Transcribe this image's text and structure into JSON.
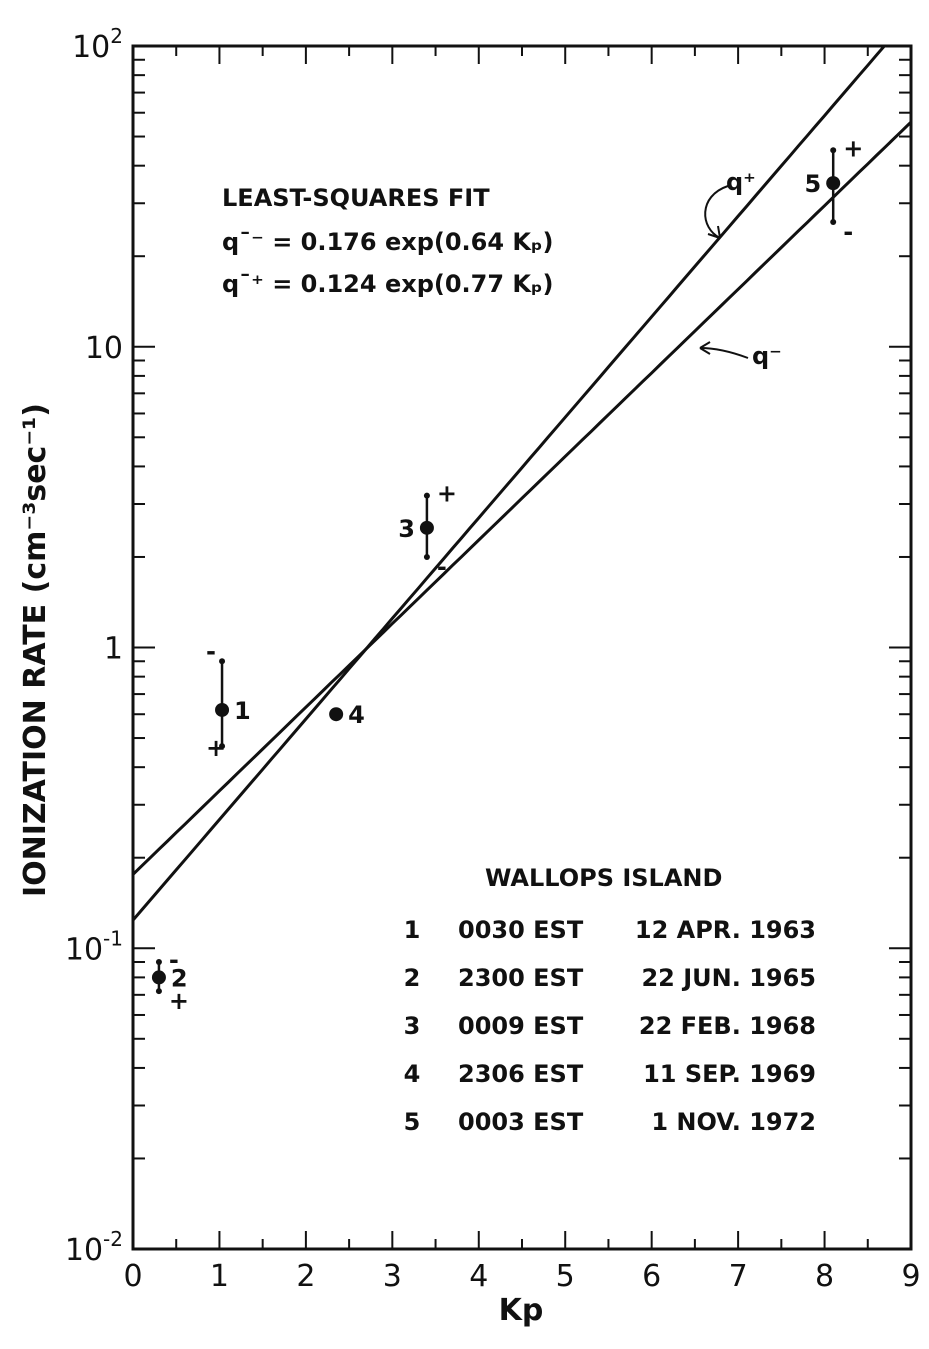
{
  "chart_data": {
    "type": "scatter",
    "xlabel": "Kp",
    "ylabel": "IONIZATION RATE (cm⁻³sec⁻¹)",
    "xlim": [
      0,
      9
    ],
    "ylim": [
      0.01,
      100
    ],
    "y_scale": "log",
    "x_ticks": [
      "0",
      "1",
      "2",
      "3",
      "4",
      "5",
      "6",
      "7",
      "8",
      "9"
    ],
    "y_ticks": [
      {
        "value": 0.01,
        "base": "10",
        "exp": "-2"
      },
      {
        "value": 0.1,
        "base": "10",
        "exp": "-1"
      },
      {
        "value": 1,
        "base": "1",
        "exp": ""
      },
      {
        "value": 10,
        "base": "10",
        "exp": ""
      },
      {
        "value": 100,
        "base": "10",
        "exp": "2"
      }
    ],
    "fit_title": "LEAST-SQUARES FIT",
    "fits": [
      {
        "name": "q⁻",
        "label": "q¯⁻ = 0.176 exp(0.64 Kₚ)",
        "a": 0.176,
        "b": 0.64
      },
      {
        "name": "q⁺",
        "label": "q¯⁺ = 0.124 exp(0.77 Kₚ)",
        "a": 0.124,
        "b": 0.77
      }
    ],
    "fit_line_labels": {
      "q_plus": "q⁺",
      "q_minus": "q⁻"
    },
    "points": [
      {
        "id": "1",
        "x": 1.03,
        "y": 0.62,
        "low": 0.47,
        "high": 0.9,
        "top_sign": "-",
        "bottom_sign": "+"
      },
      {
        "id": "2",
        "x": 0.3,
        "y": 0.08,
        "low": 0.072,
        "high": 0.09,
        "top_sign": "-",
        "bottom_sign": "+"
      },
      {
        "id": "3",
        "x": 3.4,
        "y": 2.5,
        "low": 2.0,
        "high": 3.2,
        "top_sign": "+",
        "bottom_sign": "-"
      },
      {
        "id": "4",
        "x": 2.35,
        "y": 0.6,
        "low": null,
        "high": null,
        "top_sign": "",
        "bottom_sign": ""
      },
      {
        "id": "5",
        "x": 8.1,
        "y": 35,
        "low": 26,
        "high": 45,
        "top_sign": "+",
        "bottom_sign": "-"
      }
    ],
    "legend": {
      "title": "WALLOPS ISLAND",
      "rows": [
        {
          "num": "1",
          "time": "0030 EST",
          "date": "12 APR. 1963"
        },
        {
          "num": "2",
          "time": "2300 EST",
          "date": "22 JUN. 1965"
        },
        {
          "num": "3",
          "time": "0009 EST",
          "date": "22 FEB. 1968"
        },
        {
          "num": "4",
          "time": "2306 EST",
          "date": "11 SEP. 1969"
        },
        {
          "num": "5",
          "time": "0003 EST",
          "date": "1 NOV. 1972"
        }
      ]
    }
  }
}
